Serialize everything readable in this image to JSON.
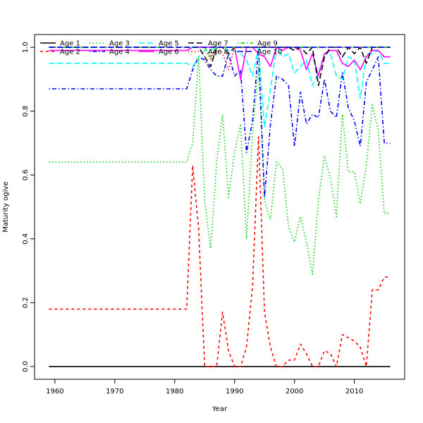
{
  "chart_data": {
    "type": "line",
    "title": "",
    "xlabel": "Year",
    "ylabel": "Maturity ogive",
    "xlim": [
      1956.6,
      2018.4
    ],
    "ylim": [
      -0.04,
      1.04
    ],
    "xticks": [
      "1960",
      "1970",
      "1980",
      "1990",
      "2000",
      "2010"
    ],
    "yticks": [
      "0.0",
      "0.2",
      "0.4",
      "0.6",
      "0.8",
      "1.0"
    ],
    "legend_position": "top-left",
    "series": [
      {
        "name": "Age 1",
        "color": "#000000",
        "dash": "solid",
        "points": [
          [
            1959,
            0.0
          ],
          [
            2016,
            0.0
          ]
        ]
      },
      {
        "name": "Age 2",
        "color": "#ff0000",
        "dash": "dashed",
        "points": [
          [
            1959,
            0.18
          ],
          [
            1982,
            0.18
          ],
          [
            1983,
            0.63
          ],
          [
            1984,
            0.43
          ],
          [
            1985,
            0.0
          ],
          [
            1986,
            0.0
          ],
          [
            1987,
            0.0
          ],
          [
            1988,
            0.17
          ],
          [
            1989,
            0.05
          ],
          [
            1990,
            0.0
          ],
          [
            1991,
            0.0
          ],
          [
            1992,
            0.06
          ],
          [
            1993,
            0.25
          ],
          [
            1994,
            0.72
          ],
          [
            1995,
            0.17
          ],
          [
            1996,
            0.06
          ],
          [
            1997,
            0.0
          ],
          [
            1998,
            0.0
          ],
          [
            1999,
            0.02
          ],
          [
            2000,
            0.02
          ],
          [
            2001,
            0.07
          ],
          [
            2002,
            0.04
          ],
          [
            2003,
            0.0
          ],
          [
            2004,
            0.0
          ],
          [
            2005,
            0.05
          ],
          [
            2006,
            0.04
          ],
          [
            2007,
            0.0
          ],
          [
            2008,
            0.1
          ],
          [
            2009,
            0.09
          ],
          [
            2010,
            0.08
          ],
          [
            2011,
            0.06
          ],
          [
            2012,
            0.0
          ],
          [
            2013,
            0.24
          ],
          [
            2014,
            0.24
          ],
          [
            2015,
            0.28
          ],
          [
            2016,
            0.28
          ]
        ]
      },
      {
        "name": "Age 3",
        "color": "#00cd00",
        "dash": "dotted",
        "points": [
          [
            1959,
            0.64
          ],
          [
            1982,
            0.64
          ],
          [
            1983,
            0.7
          ],
          [
            1984,
            0.97
          ],
          [
            1985,
            0.52
          ],
          [
            1986,
            0.37
          ],
          [
            1987,
            0.64
          ],
          [
            1988,
            0.79
          ],
          [
            1989,
            0.53
          ],
          [
            1990,
            0.67
          ],
          [
            1991,
            0.76
          ],
          [
            1992,
            0.4
          ],
          [
            1993,
            0.73
          ],
          [
            1994,
            0.94
          ],
          [
            1995,
            0.52
          ],
          [
            1996,
            0.46
          ],
          [
            1997,
            0.64
          ],
          [
            1998,
            0.62
          ],
          [
            1999,
            0.44
          ],
          [
            2000,
            0.39
          ],
          [
            2001,
            0.47
          ],
          [
            2002,
            0.39
          ],
          [
            2003,
            0.29
          ],
          [
            2004,
            0.52
          ],
          [
            2005,
            0.66
          ],
          [
            2006,
            0.59
          ],
          [
            2007,
            0.47
          ],
          [
            2008,
            0.79
          ],
          [
            2009,
            0.61
          ],
          [
            2010,
            0.61
          ],
          [
            2011,
            0.51
          ],
          [
            2012,
            0.63
          ],
          [
            2013,
            0.82
          ],
          [
            2014,
            0.74
          ],
          [
            2015,
            0.48
          ],
          [
            2016,
            0.48
          ]
        ]
      },
      {
        "name": "Age 4",
        "color": "#0000ff",
        "dash": "dotdash",
        "points": [
          [
            1959,
            0.87
          ],
          [
            1982,
            0.87
          ],
          [
            1983,
            0.93
          ],
          [
            1984,
            0.97
          ],
          [
            1985,
            0.96
          ],
          [
            1986,
            0.93
          ],
          [
            1987,
            0.91
          ],
          [
            1988,
            0.91
          ],
          [
            1989,
            0.98
          ],
          [
            1990,
            0.91
          ],
          [
            1991,
            0.93
          ],
          [
            1992,
            0.67
          ],
          [
            1993,
            0.77
          ],
          [
            1994,
            1.0
          ],
          [
            1995,
            0.53
          ],
          [
            1996,
            0.76
          ],
          [
            1997,
            0.91
          ],
          [
            1998,
            0.9
          ],
          [
            1999,
            0.88
          ],
          [
            2000,
            0.69
          ],
          [
            2001,
            0.86
          ],
          [
            2002,
            0.76
          ],
          [
            2003,
            0.79
          ],
          [
            2004,
            0.78
          ],
          [
            2005,
            0.9
          ],
          [
            2006,
            0.8
          ],
          [
            2007,
            0.78
          ],
          [
            2008,
            0.92
          ],
          [
            2009,
            0.81
          ],
          [
            2010,
            0.77
          ],
          [
            2011,
            0.69
          ],
          [
            2012,
            0.89
          ],
          [
            2013,
            0.93
          ],
          [
            2014,
            0.97
          ],
          [
            2015,
            0.7
          ],
          [
            2016,
            0.7
          ]
        ]
      },
      {
        "name": "Age 5",
        "color": "#00ffff",
        "dash": "longdash",
        "points": [
          [
            1959,
            0.95
          ],
          [
            1982,
            0.95
          ],
          [
            1983,
            0.94
          ],
          [
            1984,
            0.97
          ],
          [
            1985,
            0.99
          ],
          [
            1986,
            0.99
          ],
          [
            1987,
            1.0
          ],
          [
            1988,
            1.0
          ],
          [
            1989,
            0.99
          ],
          [
            1990,
            0.99
          ],
          [
            1991,
            0.98
          ],
          [
            1992,
            0.96
          ],
          [
            1993,
            0.91
          ],
          [
            1994,
            1.0
          ],
          [
            1995,
            0.75
          ],
          [
            1996,
            0.87
          ],
          [
            1997,
            1.0
          ],
          [
            1998,
            0.97
          ],
          [
            1999,
            0.98
          ],
          [
            2000,
            0.92
          ],
          [
            2001,
            0.94
          ],
          [
            2002,
            0.96
          ],
          [
            2003,
            0.88
          ],
          [
            2004,
            0.92
          ],
          [
            2005,
            0.98
          ],
          [
            2006,
            0.98
          ],
          [
            2007,
            0.91
          ],
          [
            2008,
            0.9
          ],
          [
            2009,
            0.97
          ],
          [
            2010,
            0.96
          ],
          [
            2011,
            0.84
          ],
          [
            2012,
            0.98
          ],
          [
            2013,
            0.98
          ],
          [
            2014,
            0.99
          ],
          [
            2015,
            0.95
          ],
          [
            2016,
            0.95
          ]
        ]
      },
      {
        "name": "Age 6",
        "color": "#ff00ff",
        "dash": "solid",
        "points": [
          [
            1959,
            0.99
          ],
          [
            1982,
            0.99
          ],
          [
            1983,
            1.0
          ],
          [
            1984,
            1.0
          ],
          [
            1985,
            1.0
          ],
          [
            1986,
            1.0
          ],
          [
            1987,
            1.0
          ],
          [
            1988,
            1.0
          ],
          [
            1989,
            1.0
          ],
          [
            1990,
            1.0
          ],
          [
            1991,
            0.9
          ],
          [
            1992,
            1.0
          ],
          [
            1993,
            1.0
          ],
          [
            1994,
            0.98
          ],
          [
            1995,
            0.97
          ],
          [
            1996,
            0.94
          ],
          [
            1997,
            1.0
          ],
          [
            1998,
            0.99
          ],
          [
            1999,
            1.0
          ],
          [
            2000,
            1.0
          ],
          [
            2001,
            0.99
          ],
          [
            2002,
            0.93
          ],
          [
            2003,
            0.98
          ],
          [
            2004,
            0.91
          ],
          [
            2005,
            0.98
          ],
          [
            2006,
            0.99
          ],
          [
            2007,
            0.99
          ],
          [
            2008,
            0.95
          ],
          [
            2009,
            0.94
          ],
          [
            2010,
            0.96
          ],
          [
            2011,
            0.93
          ],
          [
            2012,
            0.97
          ],
          [
            2013,
            0.99
          ],
          [
            2014,
            0.99
          ],
          [
            2015,
            0.97
          ],
          [
            2016,
            0.97
          ]
        ]
      },
      {
        "name": "Age 7",
        "color": "#000000",
        "dash": "longdash",
        "points": [
          [
            1959,
            1.0
          ],
          [
            1982,
            1.0
          ],
          [
            1983,
            1.0
          ],
          [
            1984,
            1.0
          ],
          [
            1985,
            0.97
          ],
          [
            1986,
            0.94
          ],
          [
            1987,
            1.0
          ],
          [
            1988,
            1.0
          ],
          [
            1989,
            0.98
          ],
          [
            1990,
            1.0
          ],
          [
            1991,
            1.0
          ],
          [
            1992,
            1.0
          ],
          [
            1993,
            1.0
          ],
          [
            1994,
            1.0
          ],
          [
            1995,
            1.0
          ],
          [
            1996,
            1.0
          ],
          [
            1997,
            1.0
          ],
          [
            1998,
            1.0
          ],
          [
            1999,
            1.0
          ],
          [
            2000,
            0.99
          ],
          [
            2001,
            1.0
          ],
          [
            2002,
            0.98
          ],
          [
            2003,
            1.0
          ],
          [
            2004,
            0.88
          ],
          [
            2005,
            0.97
          ],
          [
            2006,
            1.0
          ],
          [
            2007,
            1.0
          ],
          [
            2008,
            0.97
          ],
          [
            2009,
            1.0
          ],
          [
            2010,
            0.98
          ],
          [
            2011,
            1.0
          ],
          [
            2012,
            0.95
          ],
          [
            2013,
            1.0
          ],
          [
            2014,
            1.0
          ],
          [
            2015,
            1.0
          ],
          [
            2016,
            1.0
          ]
        ]
      },
      {
        "name": "Age 8",
        "color": "#ff0000",
        "dash": "dotted",
        "points": [
          [
            1959,
            1.0
          ],
          [
            1982,
            1.0
          ],
          [
            1983,
            1.0
          ],
          [
            1984,
            1.0
          ],
          [
            1985,
            1.0
          ],
          [
            1986,
            0.96
          ],
          [
            1987,
            1.0
          ],
          [
            1988,
            0.98
          ],
          [
            1989,
            0.93
          ],
          [
            1990,
            1.0
          ],
          [
            1991,
            1.0
          ],
          [
            1992,
            1.0
          ],
          [
            1993,
            1.0
          ],
          [
            1994,
            1.0
          ],
          [
            1995,
            1.0
          ],
          [
            1996,
            1.0
          ],
          [
            1997,
            1.0
          ],
          [
            1998,
            1.0
          ],
          [
            1999,
            1.0
          ],
          [
            2000,
            1.0
          ],
          [
            2001,
            1.0
          ],
          [
            2002,
            1.0
          ],
          [
            2003,
            1.0
          ],
          [
            2004,
            1.0
          ],
          [
            2005,
            1.0
          ],
          [
            2006,
            1.0
          ],
          [
            2007,
            1.0
          ],
          [
            2008,
            1.0
          ],
          [
            2009,
            1.0
          ],
          [
            2010,
            1.0
          ],
          [
            2011,
            1.0
          ],
          [
            2012,
            1.0
          ],
          [
            2013,
            1.0
          ],
          [
            2014,
            1.0
          ],
          [
            2015,
            1.0
          ],
          [
            2016,
            1.0
          ]
        ]
      },
      {
        "name": "Age 9",
        "color": "#00cd00",
        "dash": "dotdash",
        "points": [
          [
            1959,
            1.0
          ],
          [
            1985,
            1.0
          ],
          [
            1986,
            0.97
          ],
          [
            1987,
            1.0
          ],
          [
            2012,
            1.0
          ],
          [
            2013,
            1.0
          ],
          [
            2016,
            1.0
          ]
        ]
      },
      {
        "name": "Age 10",
        "color": "#0000ff",
        "dash": "longdash",
        "points": [
          [
            1959,
            1.0
          ],
          [
            2016,
            1.0
          ]
        ]
      }
    ]
  }
}
